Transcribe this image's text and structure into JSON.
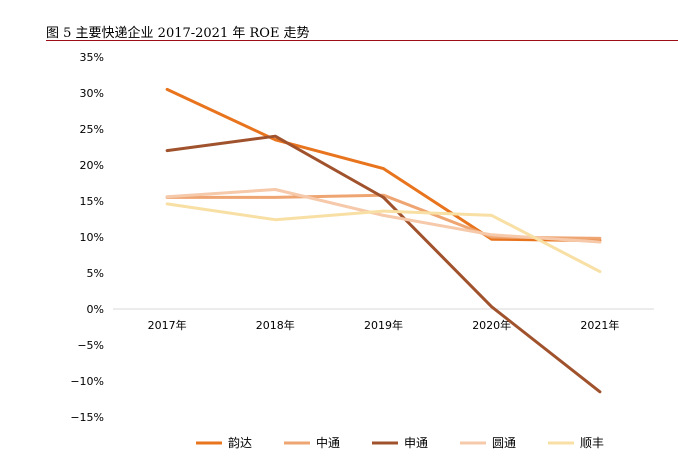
{
  "figure": {
    "title": "图 5 主要快递企业 2017-2021 年 ROE 走势"
  },
  "chart_data": {
    "type": "line",
    "title": "图 5 主要快递企业 2017-2021 年 ROE 走势",
    "xlabel": "",
    "ylabel": "",
    "categories": [
      "2017年",
      "2018年",
      "2019年",
      "2020年",
      "2021年"
    ],
    "ylim": [
      -15,
      35
    ],
    "yticks": [
      35,
      30,
      25,
      20,
      15,
      10,
      5,
      0,
      -5,
      -10,
      -15
    ],
    "ytick_labels": [
      "35%",
      "30%",
      "25%",
      "20%",
      "15%",
      "10%",
      "5%",
      "0%",
      "−5%",
      "−10%",
      "−15%"
    ],
    "grid": false,
    "legend_position": "bottom",
    "series": [
      {
        "name": "韵达",
        "color": "#E8741E",
        "values": [
          30.5,
          23.5,
          19.5,
          9.7,
          9.5
        ]
      },
      {
        "name": "中通",
        "color": "#EEA572",
        "values": [
          15.5,
          15.5,
          15.8,
          10.0,
          9.8
        ]
      },
      {
        "name": "申通",
        "color": "#A0522D",
        "values": [
          22.0,
          24.0,
          15.5,
          0.3,
          -11.5
        ]
      },
      {
        "name": "圆通",
        "color": "#F5C9A9",
        "values": [
          15.6,
          16.6,
          13.0,
          10.3,
          9.3
        ]
      },
      {
        "name": "顺丰",
        "color": "#F8DFA4",
        "values": [
          14.6,
          12.4,
          13.6,
          13.0,
          5.2
        ]
      }
    ]
  }
}
